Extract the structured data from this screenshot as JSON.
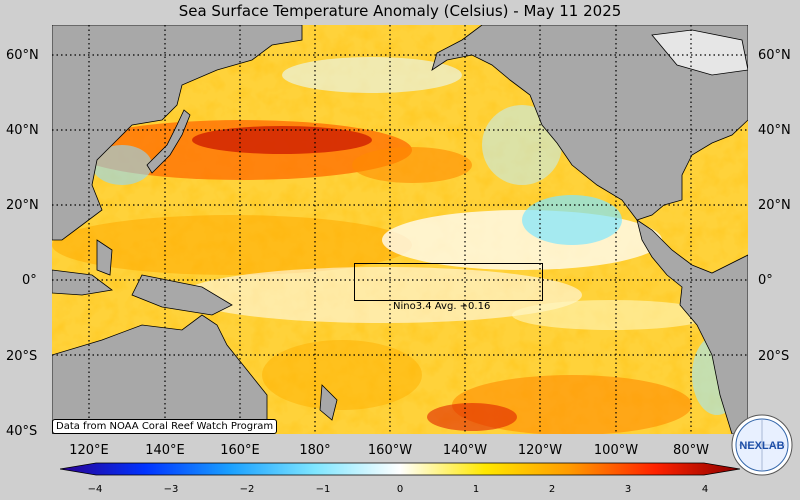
{
  "map": {
    "title": "Sea Surface Temperature Anomaly (Celsius) - May 11 2025",
    "lat_labels": [
      "60°N",
      "40°N",
      "20°N",
      "0°",
      "20°S",
      "40°S"
    ],
    "lon_labels": [
      "120°E",
      "140°E",
      "160°E",
      "180°",
      "160°W",
      "140°W",
      "120°W",
      "100°W",
      "80°W"
    ],
    "nino_label": "Nino3.4 Avg. +0.16",
    "credit": "Data from NOAA Coral Reef Watch Program",
    "logo_text": "NEXLAB",
    "colorbar": {
      "min": -4,
      "max": 4,
      "ticks": [
        "−4",
        "−3",
        "−2",
        "−1",
        "0",
        "1",
        "2",
        "3",
        "4"
      ],
      "colors": [
        "#2a0090",
        "#0033ff",
        "#1aa0ff",
        "#7fe6ff",
        "#ffffff",
        "#ffe800",
        "#ff9a00",
        "#ff2200",
        "#8a0000"
      ]
    },
    "colors": {
      "land": "#a8a8a8",
      "coast": "#000000",
      "background": "#cfcfcf"
    }
  }
}
